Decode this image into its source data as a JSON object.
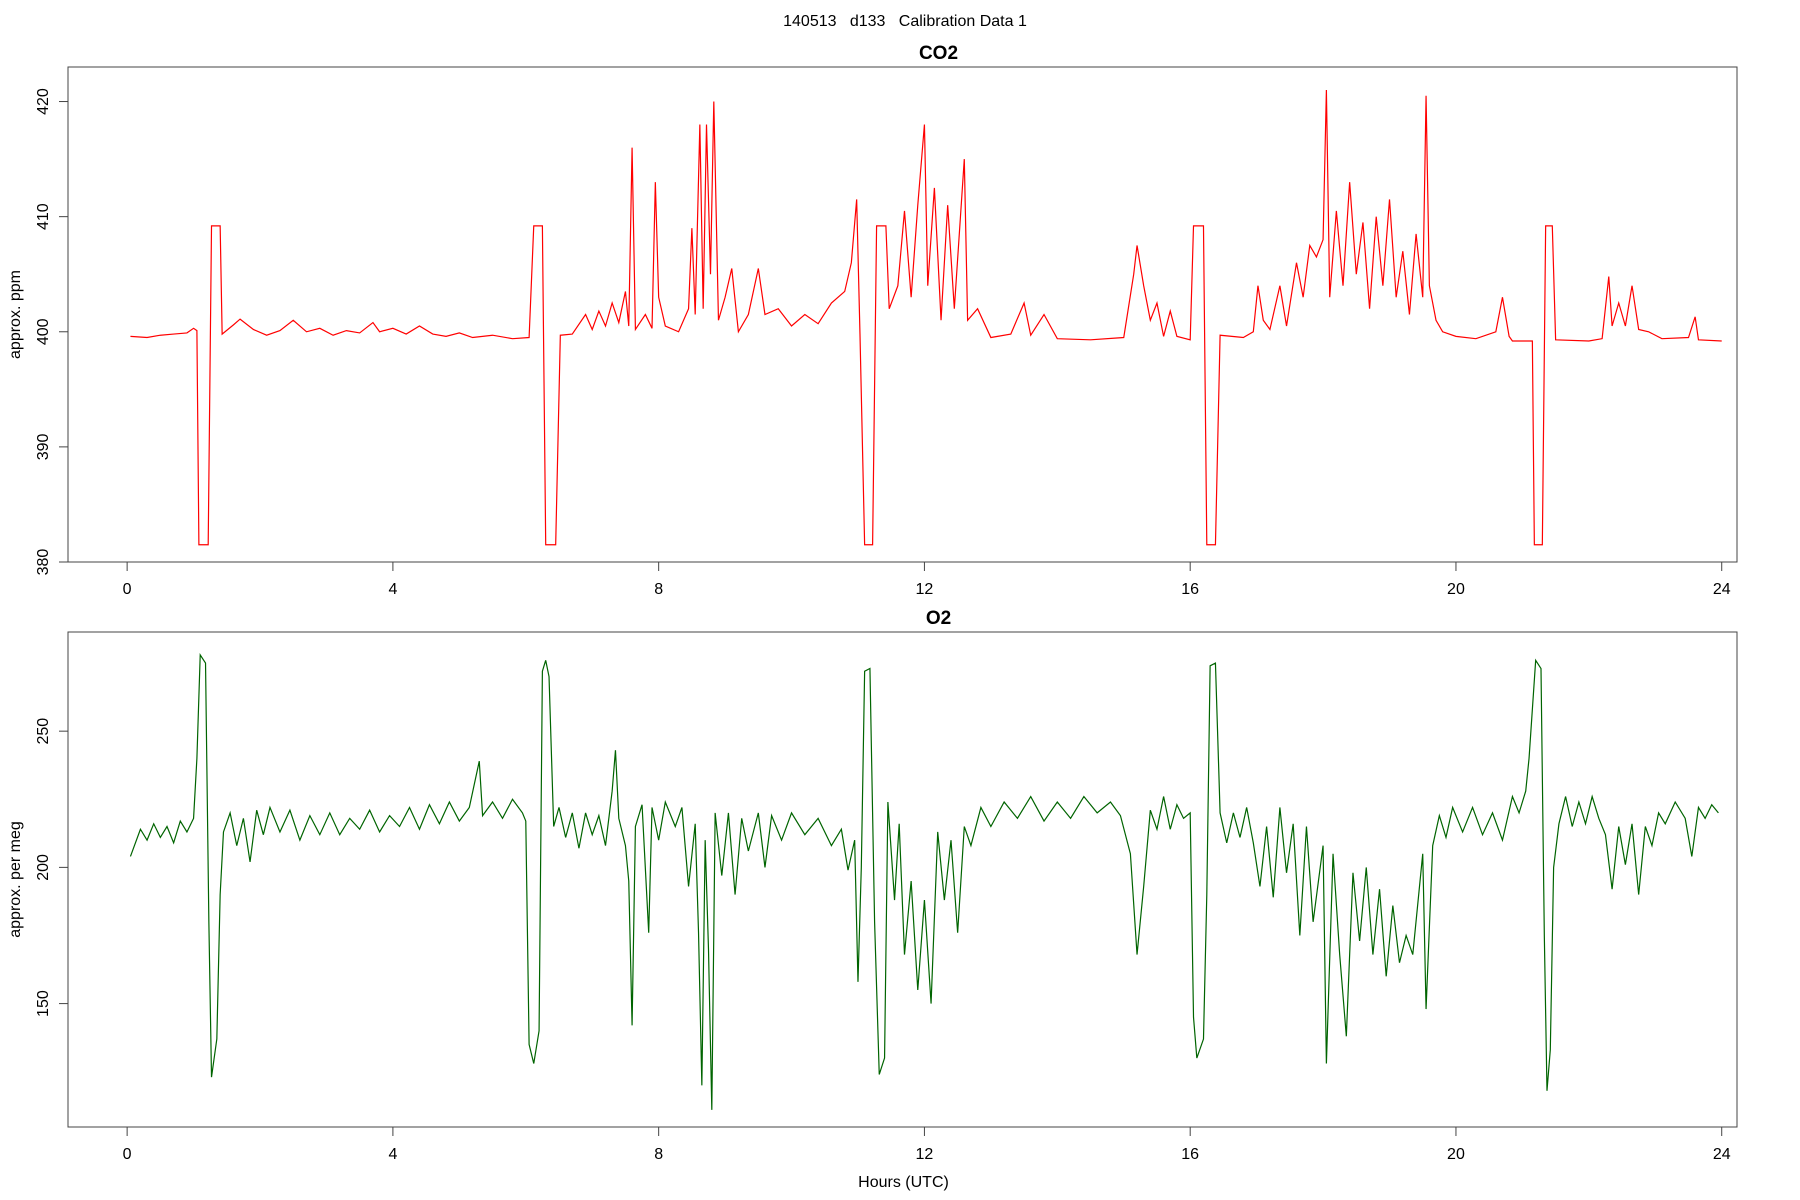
{
  "title": "140513   d133   Calibration Data 1",
  "chart_data": [
    {
      "type": "line",
      "title": "CO2",
      "ylabel": "approx. ppm",
      "color": "#ff0000",
      "xlim": [
        -0.89,
        24.23
      ],
      "ylim": [
        380,
        423
      ],
      "xticks": [
        0,
        4,
        8,
        12,
        16,
        20,
        24
      ],
      "yticks": [
        380,
        390,
        400,
        410,
        420
      ],
      "x": [
        0.05,
        0.3,
        0.5,
        0.7,
        0.9,
        1.0,
        1.05,
        1.08,
        1.22,
        1.27,
        1.4,
        1.43,
        1.6,
        1.7,
        1.9,
        2.1,
        2.3,
        2.5,
        2.7,
        2.9,
        3.1,
        3.3,
        3.5,
        3.7,
        3.8,
        4.0,
        4.2,
        4.4,
        4.6,
        4.8,
        5.0,
        5.2,
        5.5,
        5.8,
        6.05,
        6.12,
        6.25,
        6.3,
        6.45,
        6.52,
        6.7,
        6.9,
        7.0,
        7.1,
        7.2,
        7.3,
        7.4,
        7.5,
        7.55,
        7.6,
        7.65,
        7.8,
        7.9,
        7.95,
        8.0,
        8.1,
        8.3,
        8.45,
        8.5,
        8.55,
        8.62,
        8.67,
        8.72,
        8.78,
        8.83,
        8.9,
        9.0,
        9.1,
        9.2,
        9.35,
        9.5,
        9.6,
        9.8,
        10.0,
        10.2,
        10.4,
        10.6,
        10.8,
        10.9,
        10.98,
        11.03,
        11.1,
        11.22,
        11.28,
        11.42,
        11.47,
        11.6,
        11.7,
        11.8,
        11.9,
        12.0,
        12.05,
        12.15,
        12.25,
        12.35,
        12.45,
        12.6,
        12.65,
        12.8,
        13.0,
        13.3,
        13.5,
        13.6,
        13.8,
        14.0,
        14.5,
        15.0,
        15.15,
        15.2,
        15.3,
        15.4,
        15.5,
        15.6,
        15.7,
        15.8,
        16.0,
        16.05,
        16.2,
        16.25,
        16.38,
        16.45,
        16.8,
        16.95,
        17.02,
        17.1,
        17.2,
        17.35,
        17.45,
        17.6,
        17.7,
        17.8,
        17.9,
        18.0,
        18.05,
        18.1,
        18.2,
        18.3,
        18.4,
        18.5,
        18.6,
        18.7,
        18.8,
        18.9,
        19.0,
        19.1,
        19.2,
        19.3,
        19.4,
        19.5,
        19.55,
        19.6,
        19.7,
        19.8,
        20.0,
        20.3,
        20.6,
        20.7,
        20.8,
        20.85,
        21.15,
        21.18,
        21.3,
        21.35,
        21.45,
        21.5,
        22.0,
        22.2,
        22.3,
        22.35,
        22.45,
        22.55,
        22.65,
        22.75,
        22.9,
        23.1,
        23.5,
        23.6,
        23.65,
        24.0
      ],
      "values": [
        399.6,
        399.5,
        399.7,
        399.8,
        399.9,
        400.3,
        400.1,
        381.5,
        381.5,
        409.2,
        409.2,
        399.8,
        400.6,
        401.1,
        400.2,
        399.7,
        400.1,
        401.0,
        400.0,
        400.3,
        399.7,
        400.1,
        399.9,
        400.8,
        400.0,
        400.3,
        399.8,
        400.5,
        399.8,
        399.6,
        399.9,
        399.5,
        399.7,
        399.4,
        399.5,
        409.2,
        409.2,
        381.5,
        381.5,
        399.7,
        399.8,
        401.5,
        400.2,
        401.8,
        400.5,
        402.5,
        400.8,
        403.5,
        400.5,
        416.0,
        400.2,
        401.5,
        400.3,
        413.0,
        403.0,
        400.5,
        400.0,
        402.0,
        409.0,
        401.5,
        418.0,
        402.0,
        418.0,
        405.0,
        420.0,
        401.0,
        403.0,
        405.5,
        400.0,
        401.5,
        405.5,
        401.5,
        402.0,
        400.5,
        401.5,
        400.7,
        402.5,
        403.5,
        406.0,
        411.5,
        399.8,
        381.5,
        381.5,
        409.2,
        409.2,
        402.0,
        404.0,
        410.5,
        403.0,
        411.0,
        418.0,
        404.0,
        412.5,
        401.0,
        411.0,
        402.0,
        415.0,
        401.0,
        402.0,
        399.5,
        399.8,
        402.5,
        399.7,
        401.5,
        399.4,
        399.3,
        399.5,
        405.0,
        407.5,
        404.0,
        401.0,
        402.5,
        399.6,
        401.8,
        399.6,
        399.3,
        409.2,
        409.2,
        381.5,
        381.5,
        399.7,
        399.5,
        400.0,
        404.0,
        401.0,
        400.2,
        404.0,
        400.5,
        406.0,
        403.0,
        407.5,
        406.5,
        408.0,
        421.0,
        403.0,
        410.5,
        404.0,
        413.0,
        405.0,
        409.5,
        402.0,
        410.0,
        404.0,
        411.5,
        403.0,
        407.0,
        401.5,
        408.5,
        403.0,
        420.5,
        404.0,
        401.0,
        400.0,
        399.6,
        399.4,
        400.0,
        403.0,
        399.6,
        399.2,
        399.2,
        381.5,
        381.5,
        409.2,
        409.2,
        399.3,
        399.2,
        399.4,
        404.8,
        400.5,
        402.5,
        400.5,
        404.0,
        400.2,
        400.0,
        399.4,
        399.5,
        401.3,
        399.3,
        399.2
      ]
    },
    {
      "type": "line",
      "title": "O2",
      "ylabel": "approx. per meg",
      "xlabel": "Hours (UTC)",
      "color": "#006400",
      "xlim": [
        -0.89,
        24.23
      ],
      "ylim": [
        104.7,
        286.4
      ],
      "xticks": [
        0,
        4,
        8,
        12,
        16,
        20,
        24
      ],
      "yticks": [
        150,
        200,
        250
      ],
      "x": [
        0.05,
        0.2,
        0.3,
        0.4,
        0.5,
        0.6,
        0.7,
        0.8,
        0.9,
        1.0,
        1.05,
        1.1,
        1.18,
        1.23,
        1.27,
        1.35,
        1.4,
        1.45,
        1.55,
        1.65,
        1.75,
        1.85,
        1.95,
        2.05,
        2.15,
        2.3,
        2.45,
        2.6,
        2.75,
        2.9,
        3.05,
        3.2,
        3.35,
        3.5,
        3.65,
        3.8,
        3.95,
        4.1,
        4.25,
        4.4,
        4.55,
        4.7,
        4.85,
        5.0,
        5.15,
        5.3,
        5.35,
        5.5,
        5.65,
        5.8,
        5.95,
        6.0,
        6.05,
        6.12,
        6.2,
        6.25,
        6.3,
        6.35,
        6.42,
        6.5,
        6.6,
        6.7,
        6.8,
        6.9,
        7.0,
        7.1,
        7.2,
        7.3,
        7.35,
        7.4,
        7.5,
        7.55,
        7.6,
        7.65,
        7.75,
        7.85,
        7.9,
        8.0,
        8.1,
        8.25,
        8.35,
        8.45,
        8.55,
        8.6,
        8.65,
        8.7,
        8.75,
        8.8,
        8.85,
        8.95,
        9.05,
        9.15,
        9.25,
        9.35,
        9.5,
        9.6,
        9.7,
        9.85,
        10.0,
        10.2,
        10.4,
        10.6,
        10.75,
        10.85,
        10.95,
        11.0,
        11.05,
        11.1,
        11.18,
        11.25,
        11.32,
        11.4,
        11.45,
        11.55,
        11.62,
        11.7,
        11.8,
        11.9,
        12.0,
        12.1,
        12.2,
        12.3,
        12.4,
        12.5,
        12.6,
        12.7,
        12.85,
        13.0,
        13.2,
        13.4,
        13.6,
        13.8,
        14.0,
        14.2,
        14.4,
        14.6,
        14.8,
        14.95,
        15.1,
        15.2,
        15.3,
        15.4,
        15.5,
        15.6,
        15.7,
        15.8,
        15.9,
        16.0,
        16.05,
        16.1,
        16.2,
        16.25,
        16.3,
        16.38,
        16.45,
        16.55,
        16.65,
        16.75,
        16.85,
        16.95,
        17.05,
        17.15,
        17.25,
        17.35,
        17.45,
        17.55,
        17.65,
        17.75,
        17.85,
        18.0,
        18.05,
        18.15,
        18.25,
        18.35,
        18.45,
        18.55,
        18.65,
        18.75,
        18.85,
        18.95,
        19.05,
        19.15,
        19.25,
        19.35,
        19.5,
        19.55,
        19.65,
        19.75,
        19.85,
        19.95,
        20.1,
        20.25,
        20.4,
        20.55,
        20.7,
        20.85,
        20.95,
        21.05,
        21.1,
        21.2,
        21.28,
        21.33,
        21.37,
        21.42,
        21.47,
        21.55,
        21.65,
        21.75,
        21.85,
        21.95,
        22.05,
        22.15,
        22.25,
        22.35,
        22.45,
        22.55,
        22.65,
        22.75,
        22.85,
        22.95,
        23.05,
        23.15,
        23.3,
        23.45,
        23.55,
        23.65,
        23.75,
        23.85,
        23.95
      ],
      "values": [
        204,
        214,
        210,
        216,
        211,
        215,
        209,
        217,
        213,
        218,
        240,
        278,
        275,
        180,
        123,
        137,
        190,
        213,
        220,
        208,
        218,
        202,
        221,
        212,
        222,
        213,
        221,
        210,
        219,
        212,
        220,
        212,
        218,
        214,
        221,
        213,
        219,
        215,
        222,
        214,
        223,
        216,
        224,
        217,
        222,
        239,
        219,
        224,
        218,
        225,
        220,
        217,
        135,
        128,
        140,
        272,
        276,
        270,
        215,
        222,
        211,
        220,
        207,
        220,
        212,
        219,
        208,
        228,
        243,
        218,
        208,
        195,
        142,
        215,
        223,
        176,
        222,
        210,
        224,
        215,
        222,
        193,
        216,
        176,
        120,
        210,
        170,
        111,
        220,
        197,
        220,
        190,
        218,
        206,
        220,
        200,
        219,
        210,
        220,
        212,
        218,
        208,
        214,
        199,
        210,
        158,
        200,
        272,
        273,
        180,
        124,
        130,
        224,
        188,
        216,
        168,
        195,
        155,
        188,
        150,
        213,
        188,
        210,
        176,
        215,
        208,
        222,
        215,
        224,
        218,
        226,
        217,
        224,
        218,
        226,
        220,
        224,
        219,
        205,
        168,
        193,
        221,
        214,
        226,
        214,
        223,
        218,
        220,
        145,
        130,
        137,
        190,
        274,
        275,
        220,
        209,
        220,
        211,
        222,
        209,
        193,
        215,
        189,
        222,
        198,
        216,
        175,
        215,
        180,
        208,
        128,
        205,
        168,
        138,
        198,
        173,
        200,
        168,
        192,
        160,
        186,
        165,
        175,
        168,
        205,
        148,
        208,
        219,
        211,
        222,
        213,
        222,
        212,
        220,
        210,
        226,
        220,
        228,
        240,
        276,
        273,
        175,
        118,
        133,
        200,
        216,
        226,
        215,
        224,
        216,
        226,
        218,
        212,
        192,
        215,
        201,
        216,
        190,
        215,
        208,
        220,
        216,
        224,
        218,
        204,
        222,
        218,
        223,
        220
      ]
    }
  ]
}
